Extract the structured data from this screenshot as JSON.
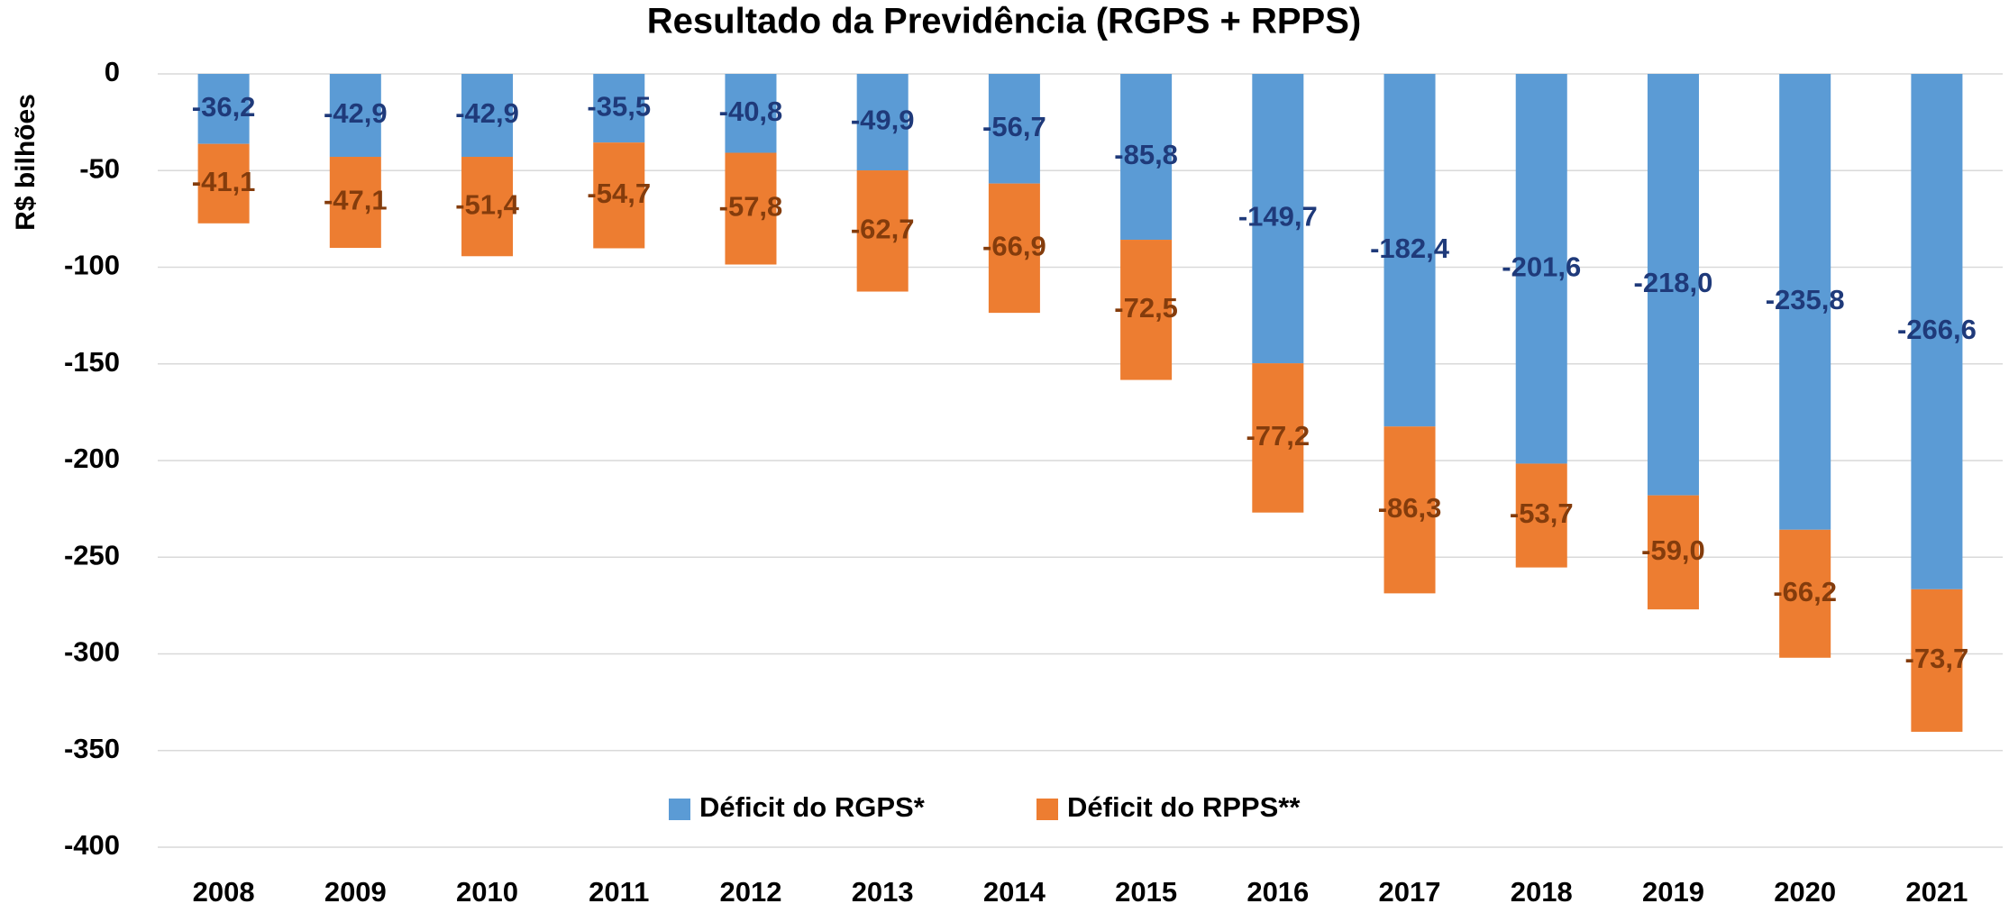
{
  "chart_data": {
    "type": "stacked_bar",
    "title": "Resultado da Previdência (RGPS + RPPS)",
    "y_label": "R$ bilhões",
    "categories": [
      "2008",
      "2009",
      "2010",
      "2011",
      "2012",
      "2013",
      "2014",
      "2015",
      "2016",
      "2017",
      "2018",
      "2019",
      "2020",
      "2021"
    ],
    "series": [
      {
        "name": "Déficit do RGPS*",
        "color": "#5b9bd5",
        "label_color": "#1f3a7a",
        "values": [
          -36.2,
          -42.9,
          -42.9,
          -35.5,
          -40.8,
          -49.9,
          -56.7,
          -85.8,
          -149.7,
          -182.4,
          -201.6,
          -218.0,
          -235.8,
          -266.6
        ],
        "value_labels": [
          "-36,2",
          "-42,9",
          "-42,9",
          "-35,5",
          "-40,8",
          "-49,9",
          "-56,7",
          "-85,8",
          "-149,7",
          "-182,4",
          "-201,6",
          "-218,0",
          "-235,8",
          "-266,6"
        ]
      },
      {
        "name": "Déficit do RPPS**",
        "color": "#ed7d31",
        "label_color": "#843c0c",
        "values": [
          -41.1,
          -47.1,
          -51.4,
          -54.7,
          -57.8,
          -62.7,
          -66.9,
          -72.5,
          -77.2,
          -86.3,
          -53.7,
          -59.0,
          -66.2,
          -73.7
        ],
        "value_labels": [
          "-41,1",
          "-47,1",
          "-51,4",
          "-54,7",
          "-57,8",
          "-62,7",
          "-66,9",
          "-72,5",
          "-77,2",
          "-86,3",
          "-53,7",
          "-59,0",
          "-66,2",
          "-73,7"
        ]
      }
    ],
    "ylim": [
      -400,
      0
    ],
    "yticks": [
      0,
      -50,
      -100,
      -150,
      -200,
      -250,
      -300,
      -350,
      -400
    ],
    "grid": true,
    "legend": "bottom"
  }
}
